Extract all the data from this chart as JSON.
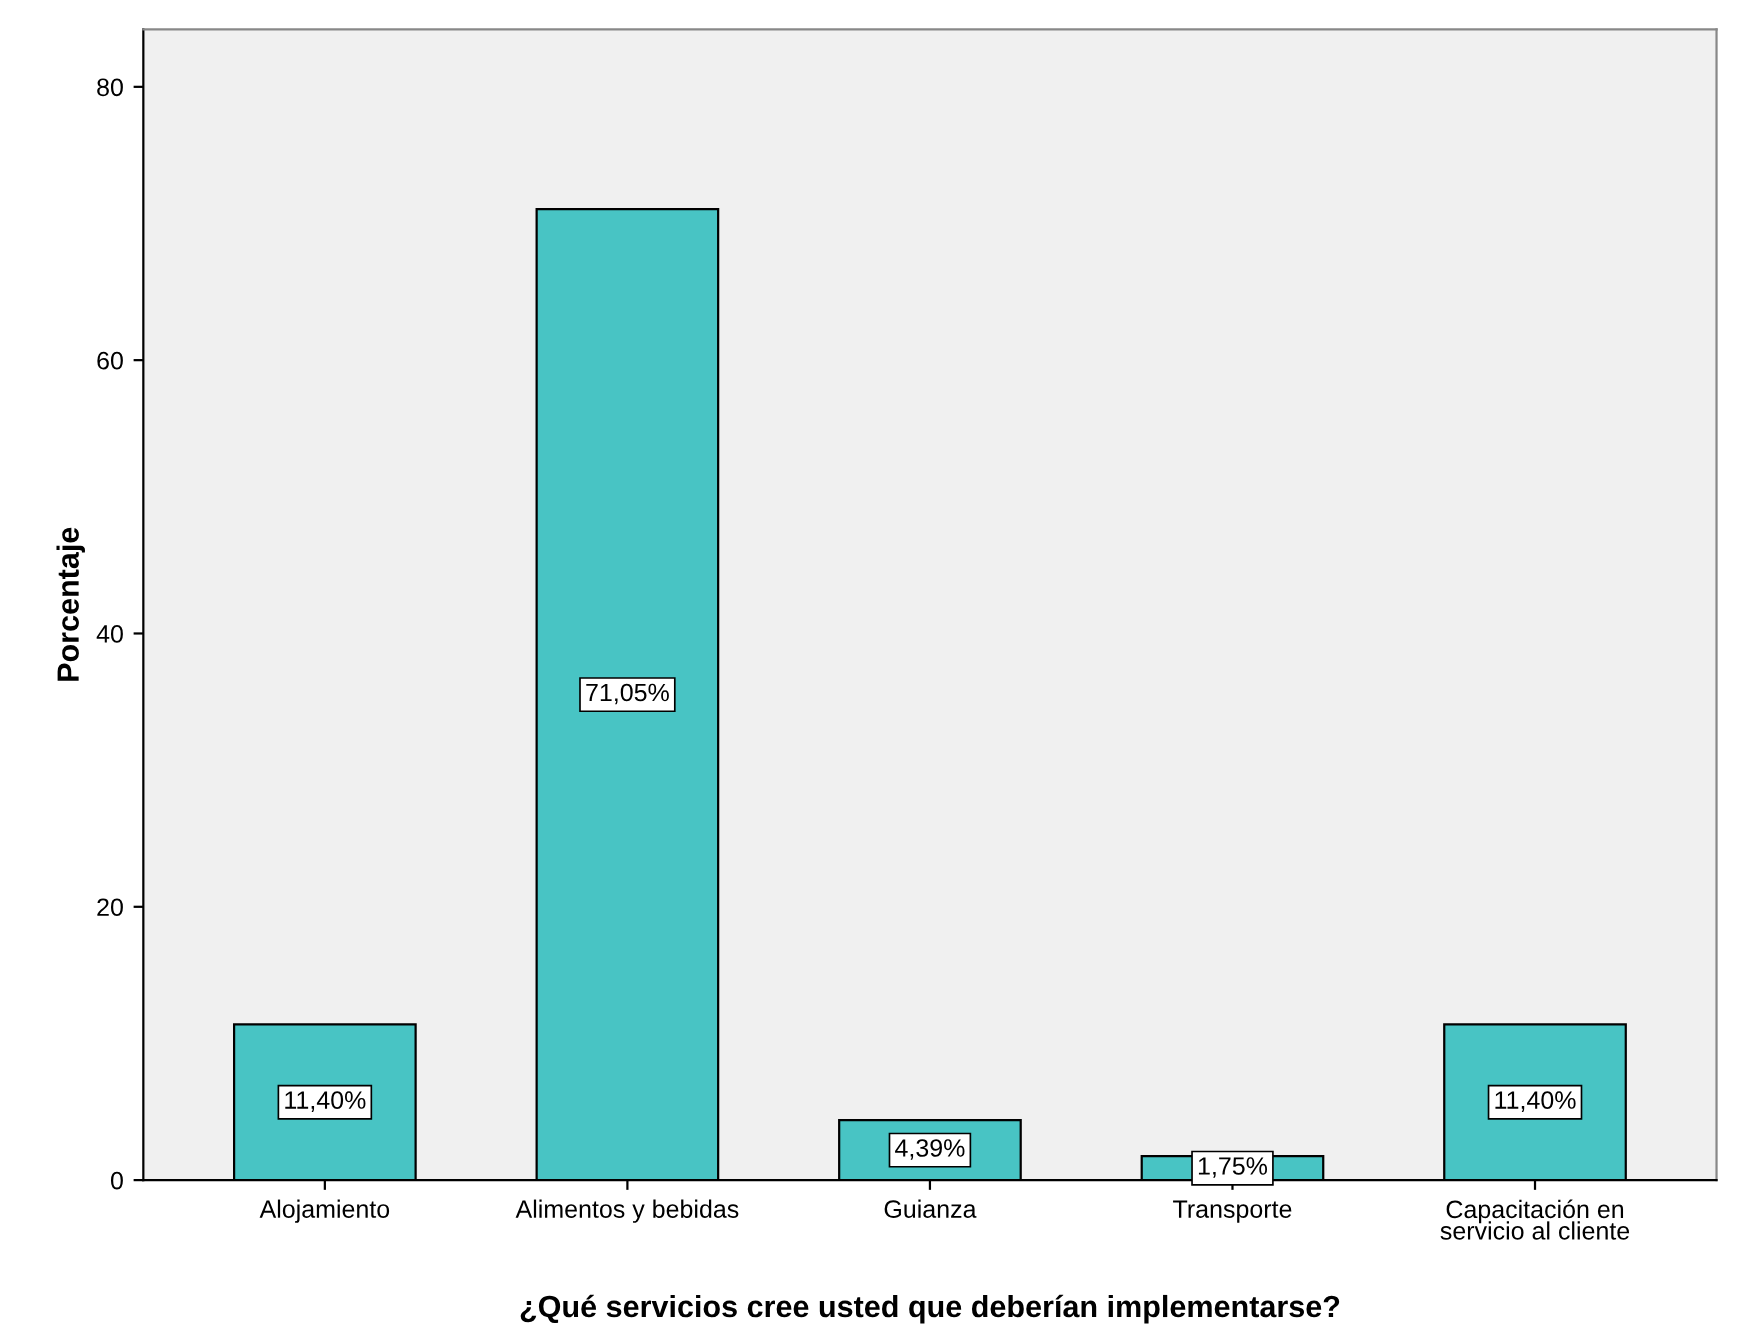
{
  "chart_data": {
    "type": "bar",
    "xlabel": "¿Qué servicios cree usted que deberían implementarse?",
    "ylabel": "Porcentaje",
    "categories": [
      "Alojamiento",
      "Alimentos y bebidas",
      "Guianza",
      "Transporte",
      "Capacitación en\nservicio al cliente"
    ],
    "values": [
      11.4,
      71.05,
      4.39,
      1.75,
      11.4
    ],
    "value_labels": [
      "11,40%",
      "71,05%",
      "4,39%",
      "1,75%",
      "11,40%"
    ],
    "color": "#48c4c4",
    "ylim": [
      0,
      84.2
    ],
    "yticks": [
      0,
      20,
      40,
      60,
      80
    ],
    "grid": false,
    "legend": false
  }
}
